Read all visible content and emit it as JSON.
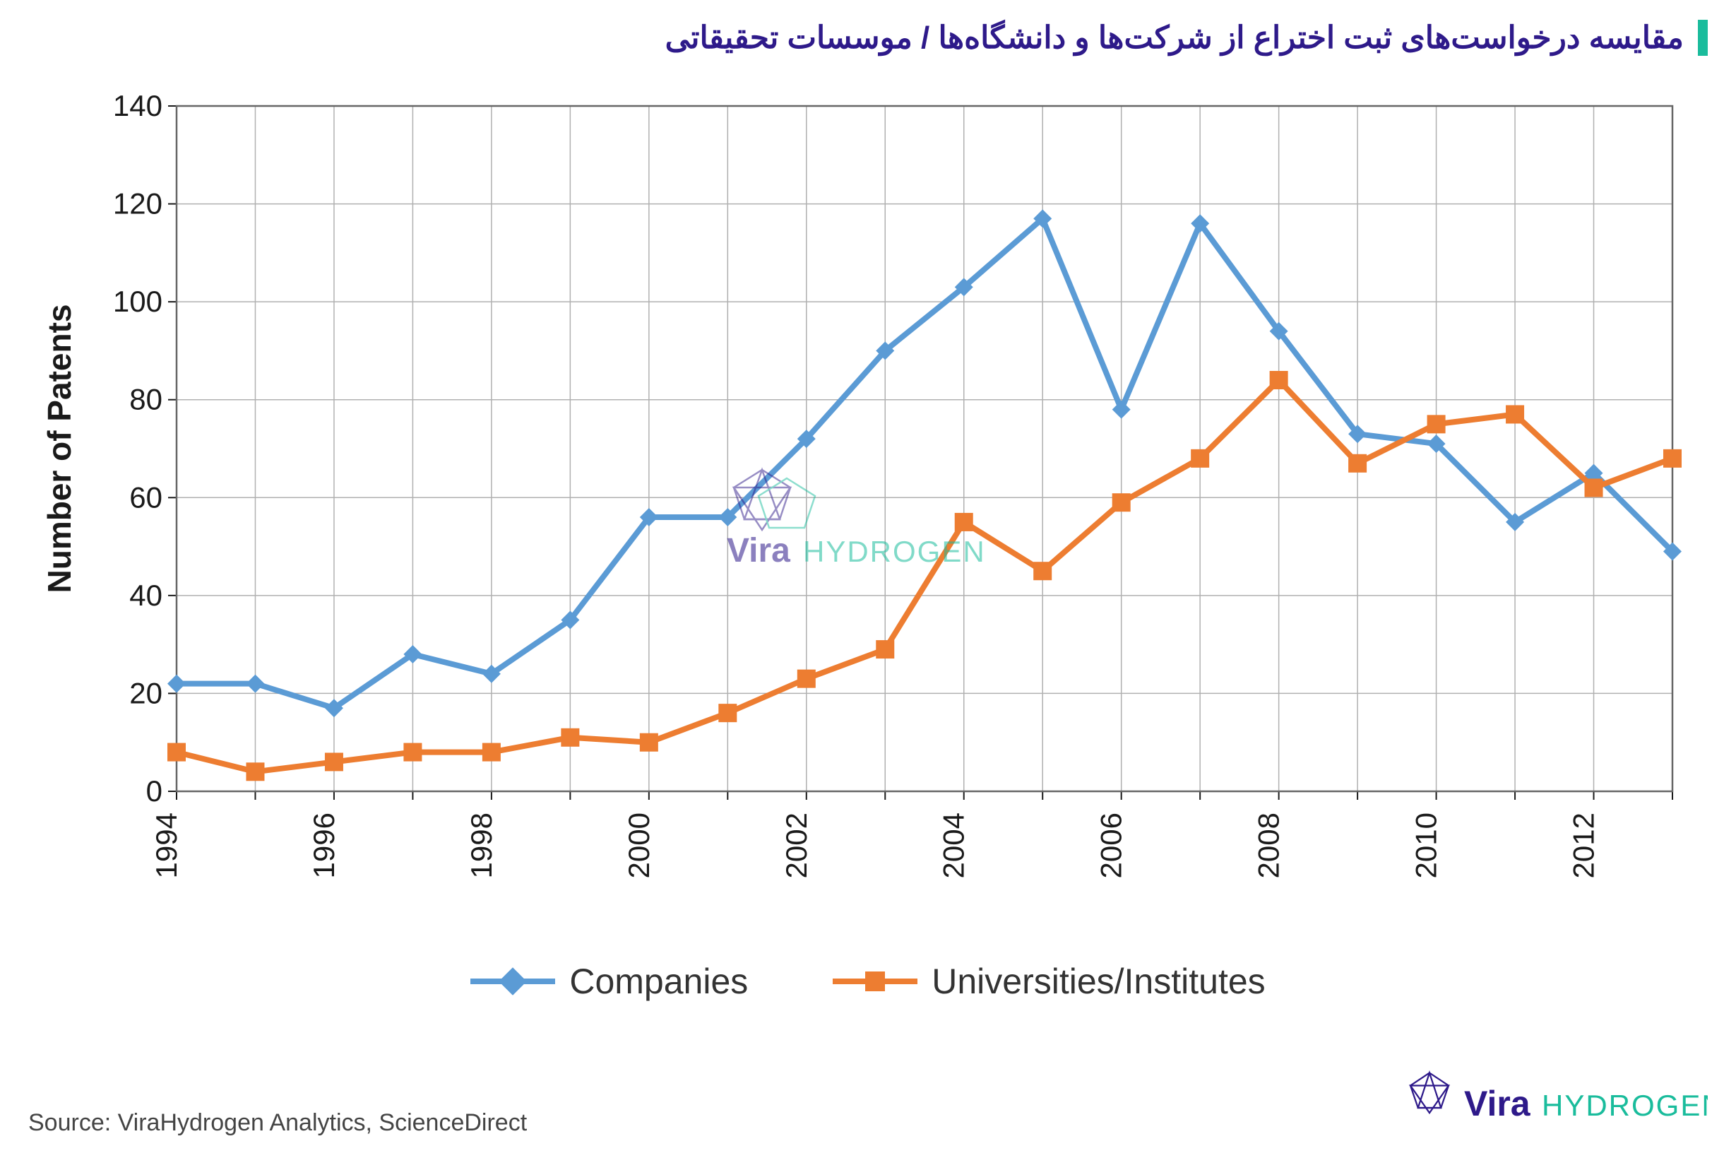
{
  "title": "مقایسه درخواست‌های ثبت اختراع از شرکت‌ها و دانشگاه‌ها / موسسات تحقیقاتی",
  "source": "Source: ViraHydrogen Analytics, ScienceDirect",
  "logo": {
    "brand_a": "Vira",
    "brand_b": "HYDROGEN",
    "vira_color": "#2e1a8a",
    "hydrogen_color": "#1abc9c"
  },
  "chart": {
    "type": "line",
    "ylabel": "Number of Patents",
    "background_color": "#ffffff",
    "grid_color": "#b0b0b0",
    "border_color": "#666666",
    "axis_color": "#1a1a1a",
    "ylim": [
      0,
      140
    ],
    "ytick_step": 20,
    "yticks": [
      0,
      20,
      40,
      60,
      80,
      100,
      120,
      140
    ],
    "xticks_labeled": [
      1994,
      1996,
      1998,
      2000,
      2002,
      2004,
      2006,
      2008,
      2010,
      2012
    ],
    "x_values": [
      1994,
      1995,
      1996,
      1997,
      1998,
      1999,
      2000,
      2001,
      2002,
      2003,
      2004,
      2005,
      2006,
      2007,
      2008,
      2009,
      2010,
      2011,
      2012,
      2013
    ],
    "line_width": 8,
    "marker_size": 26,
    "title_fontsize": 44,
    "ylabel_fontsize": 46,
    "tick_fontsize": 42,
    "xlabel_rotation": -90,
    "series": [
      {
        "name": "Companies",
        "color": "#5b9bd5",
        "marker": "diamond",
        "values": [
          22,
          22,
          17,
          28,
          24,
          35,
          56,
          56,
          72,
          90,
          103,
          117,
          78,
          116,
          94,
          73,
          71,
          55,
          65,
          49
        ]
      },
      {
        "name": "Universities/Institutes",
        "color": "#ed7d31",
        "marker": "square",
        "values": [
          8,
          4,
          6,
          8,
          8,
          11,
          10,
          16,
          23,
          29,
          55,
          45,
          59,
          68,
          84,
          67,
          75,
          77,
          62,
          68
        ]
      }
    ],
    "legend": {
      "labels": [
        "Companies",
        "Universities/Institutes"
      ],
      "fontsize": 50,
      "position": "bottom"
    }
  }
}
